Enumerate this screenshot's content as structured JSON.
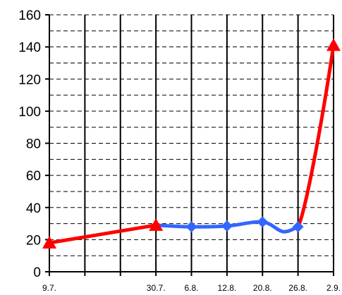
{
  "chart_data": {
    "type": "line",
    "title": "",
    "xlabel": "",
    "ylabel": "",
    "ylim": [
      0,
      160
    ],
    "y_ticks": [
      "0",
      "20",
      "40",
      "60",
      "80",
      "100",
      "120",
      "140",
      "160"
    ],
    "x_ticks": [
      "9.7.",
      "30.7.",
      "6.8.",
      "12.8.",
      "20.8.",
      "26.8.",
      "2.9."
    ],
    "grid": {
      "vertical": "solid",
      "horizontal": "dashed"
    },
    "series": [
      {
        "color": "#ff0000",
        "marker": "triangle",
        "segments": [
          {
            "x": [
              "9.7.",
              "30.7."
            ],
            "y": [
              18,
              29
            ]
          },
          {
            "x": [
              "26.8.",
              "2.9."
            ],
            "y": [
              28,
              141
            ]
          }
        ],
        "markers": {
          "x": [
            "9.7.",
            "30.7.",
            "2.9."
          ],
          "y": [
            18,
            29,
            141
          ]
        }
      },
      {
        "color": "#3366ff",
        "marker": "diamond",
        "segments": [
          {
            "x": [
              "30.7.",
              "6.8.",
              "12.8.",
              "20.8.",
              "26.8."
            ],
            "y": [
              29,
              28,
              28.5,
              31,
              28
            ]
          }
        ],
        "markers": {
          "x": [
            "6.8.",
            "12.8.",
            "20.8.",
            "26.8."
          ],
          "y": [
            28,
            28.5,
            31,
            28
          ]
        }
      }
    ]
  }
}
